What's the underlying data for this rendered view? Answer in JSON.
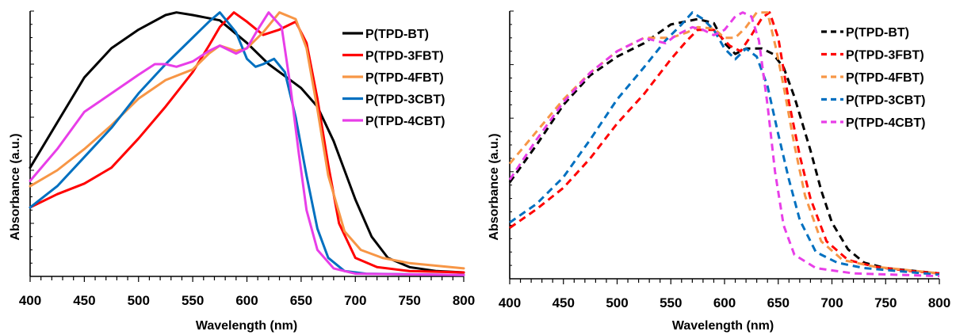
{
  "chart_data": [
    {
      "type": "line",
      "title": "",
      "xlabel": "Wavelength (nm)",
      "ylabel": "Absorbance (a.u.)",
      "xlim": [
        400,
        800
      ],
      "ylim": [
        0,
        1.0
      ],
      "xticks": [
        400,
        450,
        500,
        550,
        600,
        650,
        700,
        750,
        800
      ],
      "y_tick_labels_shown": false,
      "grid": false,
      "legend_position": "top-right",
      "line_style": "solid",
      "series": [
        {
          "name": "P(TPD-BT)",
          "color": "#000000",
          "points": [
            [
              400,
              0.41
            ],
            [
              425,
              0.58
            ],
            [
              450,
              0.75
            ],
            [
              475,
              0.86
            ],
            [
              500,
              0.93
            ],
            [
              525,
              0.985
            ],
            [
              535,
              0.995
            ],
            [
              550,
              0.985
            ],
            [
              575,
              0.965
            ],
            [
              600,
              0.88
            ],
            [
              620,
              0.8
            ],
            [
              640,
              0.74
            ],
            [
              650,
              0.71
            ],
            [
              665,
              0.64
            ],
            [
              680,
              0.51
            ],
            [
              690,
              0.4
            ],
            [
              700,
              0.29
            ],
            [
              715,
              0.15
            ],
            [
              730,
              0.07
            ],
            [
              750,
              0.035
            ],
            [
              775,
              0.02
            ],
            [
              800,
              0.015
            ]
          ]
        },
        {
          "name": "P(TPD-3FBT)",
          "color": "#ff0000",
          "points": [
            [
              400,
              0.26
            ],
            [
              425,
              0.31
            ],
            [
              450,
              0.35
            ],
            [
              475,
              0.41
            ],
            [
              500,
              0.52
            ],
            [
              525,
              0.64
            ],
            [
              550,
              0.77
            ],
            [
              565,
              0.87
            ],
            [
              575,
              0.94
            ],
            [
              588,
              0.995
            ],
            [
              600,
              0.96
            ],
            [
              615,
              0.91
            ],
            [
              630,
              0.93
            ],
            [
              645,
              0.96
            ],
            [
              655,
              0.88
            ],
            [
              665,
              0.67
            ],
            [
              675,
              0.42
            ],
            [
              685,
              0.2
            ],
            [
              700,
              0.07
            ],
            [
              720,
              0.035
            ],
            [
              750,
              0.02
            ],
            [
              800,
              0.015
            ]
          ]
        },
        {
          "name": "P(TPD-4FBT)",
          "color": "#f79646",
          "points": [
            [
              400,
              0.34
            ],
            [
              425,
              0.4
            ],
            [
              450,
              0.48
            ],
            [
              475,
              0.57
            ],
            [
              500,
              0.67
            ],
            [
              525,
              0.74
            ],
            [
              550,
              0.78
            ],
            [
              565,
              0.84
            ],
            [
              575,
              0.87
            ],
            [
              590,
              0.85
            ],
            [
              600,
              0.86
            ],
            [
              615,
              0.92
            ],
            [
              630,
              0.995
            ],
            [
              645,
              0.97
            ],
            [
              655,
              0.86
            ],
            [
              665,
              0.63
            ],
            [
              675,
              0.38
            ],
            [
              690,
              0.17
            ],
            [
              705,
              0.1
            ],
            [
              725,
              0.07
            ],
            [
              750,
              0.05
            ],
            [
              800,
              0.03
            ]
          ]
        },
        {
          "name": "P(TPD-3CBT)",
          "color": "#0070c0",
          "points": [
            [
              400,
              0.26
            ],
            [
              425,
              0.34
            ],
            [
              450,
              0.45
            ],
            [
              475,
              0.56
            ],
            [
              500,
              0.69
            ],
            [
              525,
              0.8
            ],
            [
              550,
              0.9
            ],
            [
              565,
              0.96
            ],
            [
              575,
              0.995
            ],
            [
              590,
              0.92
            ],
            [
              600,
              0.82
            ],
            [
              608,
              0.79
            ],
            [
              615,
              0.8
            ],
            [
              625,
              0.82
            ],
            [
              635,
              0.77
            ],
            [
              645,
              0.6
            ],
            [
              655,
              0.38
            ],
            [
              665,
              0.18
            ],
            [
              675,
              0.07
            ],
            [
              690,
              0.02
            ],
            [
              710,
              0.01
            ],
            [
              800,
              0.005
            ]
          ]
        },
        {
          "name": "P(TPD-4CBT)",
          "color": "#e83ee8",
          "points": [
            [
              400,
              0.36
            ],
            [
              425,
              0.48
            ],
            [
              450,
              0.62
            ],
            [
              475,
              0.69
            ],
            [
              500,
              0.76
            ],
            [
              515,
              0.8
            ],
            [
              525,
              0.8
            ],
            [
              535,
              0.79
            ],
            [
              550,
              0.81
            ],
            [
              565,
              0.85
            ],
            [
              575,
              0.87
            ],
            [
              590,
              0.84
            ],
            [
              600,
              0.86
            ],
            [
              610,
              0.93
            ],
            [
              620,
              0.995
            ],
            [
              632,
              0.94
            ],
            [
              640,
              0.72
            ],
            [
              648,
              0.46
            ],
            [
              655,
              0.25
            ],
            [
              665,
              0.1
            ],
            [
              680,
              0.03
            ],
            [
              700,
              0.01
            ],
            [
              800,
              0.005
            ]
          ]
        }
      ]
    },
    {
      "type": "line",
      "title": "",
      "xlabel": "Wavelength (nm)",
      "ylabel": "Absorbance (a.u.)",
      "xlim": [
        400,
        800
      ],
      "ylim": [
        0,
        1.0
      ],
      "xticks": [
        400,
        450,
        500,
        550,
        600,
        650,
        700,
        750,
        800
      ],
      "y_tick_labels_shown": false,
      "grid": false,
      "legend_position": "top-right",
      "line_style": "dashed",
      "series": [
        {
          "name": "P(TPD-BT)",
          "color": "#000000",
          "points": [
            [
              400,
              0.36
            ],
            [
              425,
              0.5
            ],
            [
              450,
              0.65
            ],
            [
              475,
              0.76
            ],
            [
              500,
              0.83
            ],
            [
              525,
              0.88
            ],
            [
              550,
              0.95
            ],
            [
              575,
              0.97
            ],
            [
              590,
              0.955
            ],
            [
              600,
              0.88
            ],
            [
              610,
              0.84
            ],
            [
              620,
              0.86
            ],
            [
              635,
              0.86
            ],
            [
              645,
              0.84
            ],
            [
              655,
              0.79
            ],
            [
              665,
              0.68
            ],
            [
              680,
              0.48
            ],
            [
              690,
              0.33
            ],
            [
              700,
              0.21
            ],
            [
              715,
              0.11
            ],
            [
              730,
              0.06
            ],
            [
              750,
              0.04
            ],
            [
              775,
              0.03
            ],
            [
              800,
              0.02
            ]
          ]
        },
        {
          "name": "P(TPD-3FBT)",
          "color": "#ff0000",
          "points": [
            [
              400,
              0.19
            ],
            [
              425,
              0.26
            ],
            [
              450,
              0.34
            ],
            [
              475,
              0.45
            ],
            [
              500,
              0.58
            ],
            [
              525,
              0.69
            ],
            [
              550,
              0.82
            ],
            [
              565,
              0.89
            ],
            [
              575,
              0.93
            ],
            [
              590,
              0.93
            ],
            [
              605,
              0.87
            ],
            [
              615,
              0.85
            ],
            [
              625,
              0.91
            ],
            [
              635,
              0.975
            ],
            [
              642,
              0.995
            ],
            [
              650,
              0.9
            ],
            [
              660,
              0.66
            ],
            [
              670,
              0.46
            ],
            [
              680,
              0.3
            ],
            [
              695,
              0.14
            ],
            [
              715,
              0.07
            ],
            [
              740,
              0.045
            ],
            [
              770,
              0.03
            ],
            [
              800,
              0.02
            ]
          ]
        },
        {
          "name": "P(TPD-4FBT)",
          "color": "#f79646",
          "points": [
            [
              400,
              0.43
            ],
            [
              425,
              0.55
            ],
            [
              450,
              0.67
            ],
            [
              475,
              0.77
            ],
            [
              500,
              0.85
            ],
            [
              525,
              0.9
            ],
            [
              550,
              0.9
            ],
            [
              565,
              0.92
            ],
            [
              575,
              0.94
            ],
            [
              590,
              0.935
            ],
            [
              600,
              0.9
            ],
            [
              610,
              0.9
            ],
            [
              620,
              0.94
            ],
            [
              630,
              0.995
            ],
            [
              640,
              0.995
            ],
            [
              648,
              0.86
            ],
            [
              655,
              0.72
            ],
            [
              665,
              0.5
            ],
            [
              675,
              0.31
            ],
            [
              690,
              0.14
            ],
            [
              710,
              0.07
            ],
            [
              740,
              0.045
            ],
            [
              800,
              0.02
            ]
          ]
        },
        {
          "name": "P(TPD-3CBT)",
          "color": "#0070c0",
          "points": [
            [
              400,
              0.21
            ],
            [
              425,
              0.28
            ],
            [
              450,
              0.38
            ],
            [
              475,
              0.52
            ],
            [
              500,
              0.67
            ],
            [
              525,
              0.79
            ],
            [
              545,
              0.89
            ],
            [
              560,
              0.95
            ],
            [
              570,
              0.995
            ],
            [
              580,
              0.97
            ],
            [
              590,
              0.93
            ],
            [
              600,
              0.86
            ],
            [
              610,
              0.82
            ],
            [
              620,
              0.86
            ],
            [
              630,
              0.83
            ],
            [
              640,
              0.72
            ],
            [
              650,
              0.54
            ],
            [
              660,
              0.37
            ],
            [
              670,
              0.22
            ],
            [
              685,
              0.1
            ],
            [
              705,
              0.06
            ],
            [
              730,
              0.04
            ],
            [
              800,
              0.015
            ]
          ]
        },
        {
          "name": "P(TPD-4CBT)",
          "color": "#e83ee8",
          "points": [
            [
              400,
              0.37
            ],
            [
              425,
              0.52
            ],
            [
              450,
              0.66
            ],
            [
              475,
              0.77
            ],
            [
              500,
              0.85
            ],
            [
              525,
              0.9
            ],
            [
              545,
              0.88
            ],
            [
              555,
              0.91
            ],
            [
              570,
              0.94
            ],
            [
              580,
              0.93
            ],
            [
              590,
              0.91
            ],
            [
              600,
              0.93
            ],
            [
              610,
              0.98
            ],
            [
              617,
              0.995
            ],
            [
              625,
              0.98
            ],
            [
              632,
              0.89
            ],
            [
              640,
              0.65
            ],
            [
              647,
              0.4
            ],
            [
              655,
              0.2
            ],
            [
              665,
              0.09
            ],
            [
              685,
              0.04
            ],
            [
              720,
              0.02
            ],
            [
              800,
              0.01
            ]
          ]
        }
      ]
    }
  ]
}
